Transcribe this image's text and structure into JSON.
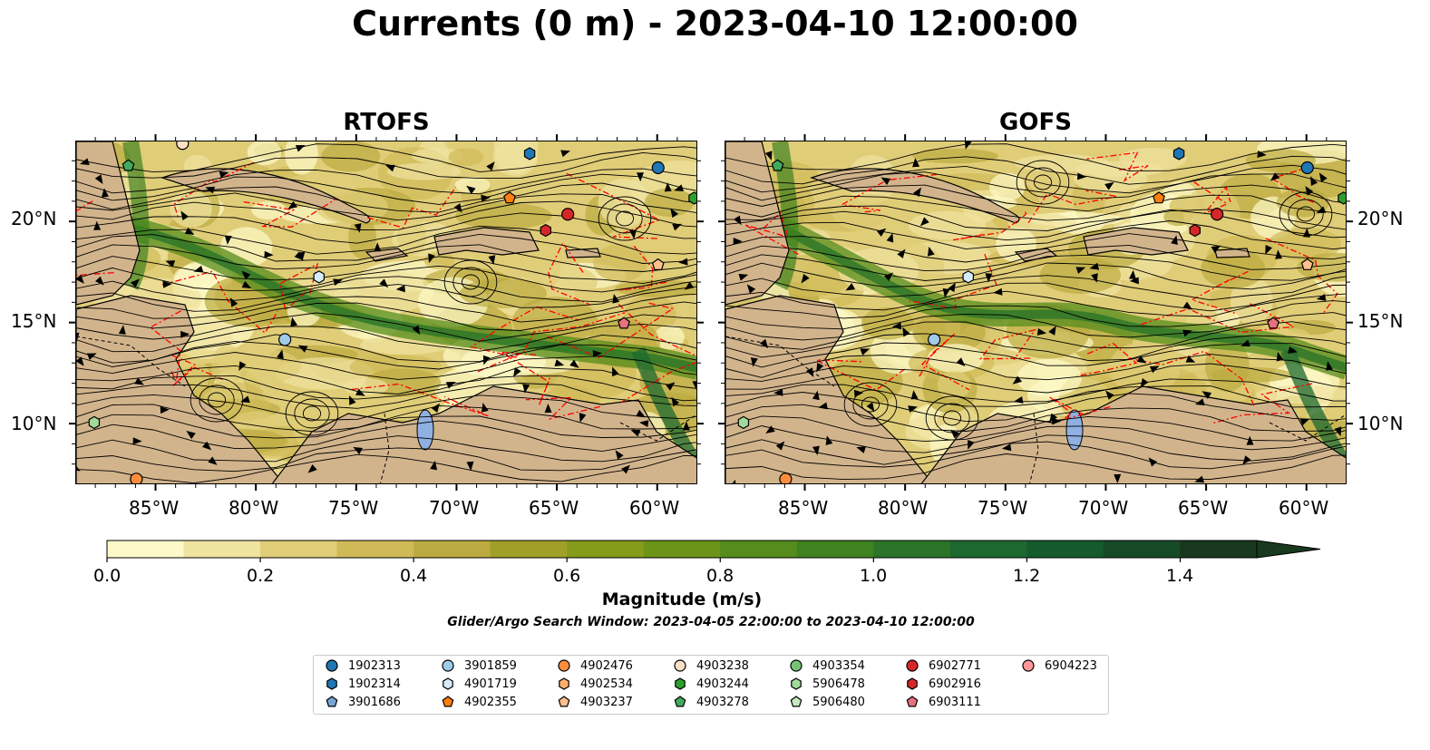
{
  "title": "Currents (0 m) - 2023-04-10 12:00:00",
  "panels": [
    {
      "title": "RTOFS"
    },
    {
      "title": "GOFS"
    }
  ],
  "lon_ticks": [
    "85°W",
    "80°W",
    "75°W",
    "70°W",
    "65°W",
    "60°W"
  ],
  "lat_ticks": [
    "20°N",
    "15°N",
    "10°N"
  ],
  "map_extent": {
    "lon": [
      -89,
      -58
    ],
    "lat": [
      7,
      24
    ]
  },
  "colorbar": {
    "label": "Magnitude (m/s)",
    "ticks": [
      "0.0",
      "0.2",
      "0.4",
      "0.6",
      "0.8",
      "1.0",
      "1.2",
      "1.4"
    ],
    "range": [
      0,
      1.5
    ],
    "step": 0.1,
    "extend": "max",
    "colors": [
      "#fdf9c8",
      "#efe3a0",
      "#e0cd78",
      "#d0ba58",
      "#bcab40",
      "#a0a028",
      "#849c1a",
      "#6c9418",
      "#558c1c",
      "#3f8220",
      "#2b7428",
      "#1c6830",
      "#155a2c",
      "#164a26",
      "#18391e"
    ]
  },
  "search_window": "Glider/Argo Search Window: 2023-04-05 22:00:00 to 2023-04-10 12:00:00",
  "legend": {
    "items": [
      {
        "id": "1902313",
        "marker": "circle",
        "color": "#1f77b4"
      },
      {
        "id": "1902314",
        "marker": "hexagon",
        "color": "#1f77b4"
      },
      {
        "id": "3901686",
        "marker": "pentagon",
        "color": "#7aa6d6"
      },
      {
        "id": "3901859",
        "marker": "circle",
        "color": "#a0cbe8"
      },
      {
        "id": "4901719",
        "marker": "hexagon",
        "color": "#d6ecfb"
      },
      {
        "id": "4902355",
        "marker": "pentagon",
        "color": "#ff7f0e"
      },
      {
        "id": "4902476",
        "marker": "circle",
        "color": "#fd8d3c"
      },
      {
        "id": "4902534",
        "marker": "hexagon",
        "color": "#fdae6b"
      },
      {
        "id": "4903237",
        "marker": "pentagon",
        "color": "#fdc08c"
      },
      {
        "id": "4903238",
        "marker": "circle",
        "color": "#fde0c4"
      },
      {
        "id": "4903244",
        "marker": "hexagon",
        "color": "#2ca02c"
      },
      {
        "id": "4903278",
        "marker": "pentagon",
        "color": "#41ab5d"
      },
      {
        "id": "4903354",
        "marker": "circle",
        "color": "#74c476"
      },
      {
        "id": "5906478",
        "marker": "hexagon",
        "color": "#a1d99b"
      },
      {
        "id": "5906480",
        "marker": "pentagon",
        "color": "#c7e9c0"
      },
      {
        "id": "6902771",
        "marker": "circle",
        "color": "#d62728"
      },
      {
        "id": "6902916",
        "marker": "hexagon",
        "color": "#d62728"
      },
      {
        "id": "6903111",
        "marker": "pentagon",
        "color": "#e7717d"
      },
      {
        "id": "6904223",
        "marker": "circle",
        "color": "#ff9896"
      }
    ]
  },
  "markers": [
    {
      "panel": 0,
      "id": "4903278",
      "lon": -86.4,
      "lat": 22.8
    },
    {
      "panel": 0,
      "id": "4903238",
      "lon": -83.7,
      "lat": 23.9
    },
    {
      "panel": 0,
      "id": "1902313",
      "lon": -60.0,
      "lat": 22.7
    },
    {
      "panel": 0,
      "id": "1902314",
      "lon": -66.4,
      "lat": 23.4
    },
    {
      "panel": 0,
      "id": "4902355",
      "lon": -67.4,
      "lat": 21.2
    },
    {
      "panel": 0,
      "id": "6902771",
      "lon": -64.5,
      "lat": 20.4
    },
    {
      "panel": 0,
      "id": "6902916",
      "lon": -65.6,
      "lat": 19.6
    },
    {
      "panel": 0,
      "id": "4903244",
      "lon": -58.2,
      "lat": 21.2
    },
    {
      "panel": 0,
      "id": "4903237",
      "lon": -60.0,
      "lat": 17.9
    },
    {
      "panel": 0,
      "id": "4901719",
      "lon": -76.9,
      "lat": 17.3
    },
    {
      "panel": 0,
      "id": "3901859",
      "lon": -78.6,
      "lat": 14.2
    },
    {
      "panel": 0,
      "id": "6903111",
      "lon": -61.7,
      "lat": 15.0
    },
    {
      "panel": 0,
      "id": "5906478",
      "lon": -88.1,
      "lat": 10.1
    },
    {
      "panel": 0,
      "id": "4902476",
      "lon": -86.0,
      "lat": 7.3
    },
    {
      "panel": 1,
      "id": "4903278",
      "lon": -86.4,
      "lat": 22.8
    },
    {
      "panel": 1,
      "id": "1902313",
      "lon": -60.0,
      "lat": 22.7
    },
    {
      "panel": 1,
      "id": "1902314",
      "lon": -66.4,
      "lat": 23.4
    },
    {
      "panel": 1,
      "id": "4902355",
      "lon": -67.4,
      "lat": 21.2
    },
    {
      "panel": 1,
      "id": "6902771",
      "lon": -64.5,
      "lat": 20.4
    },
    {
      "panel": 1,
      "id": "6902916",
      "lon": -65.6,
      "lat": 19.6
    },
    {
      "panel": 1,
      "id": "4903244",
      "lon": -58.2,
      "lat": 21.2
    },
    {
      "panel": 1,
      "id": "4903237",
      "lon": -60.0,
      "lat": 17.9
    },
    {
      "panel": 1,
      "id": "4901719",
      "lon": -76.9,
      "lat": 17.3
    },
    {
      "panel": 1,
      "id": "3901859",
      "lon": -78.6,
      "lat": 14.2
    },
    {
      "panel": 1,
      "id": "6903111",
      "lon": -61.7,
      "lat": 15.0
    },
    {
      "panel": 1,
      "id": "5906478",
      "lon": -88.1,
      "lat": 10.1
    },
    {
      "panel": 1,
      "id": "4902476",
      "lon": -86.0,
      "lat": 7.3
    }
  ],
  "colors": {
    "land": "#d2b48c",
    "lake": "#8fb0e0",
    "eez": "#ff0000",
    "streamline": "#000000"
  }
}
